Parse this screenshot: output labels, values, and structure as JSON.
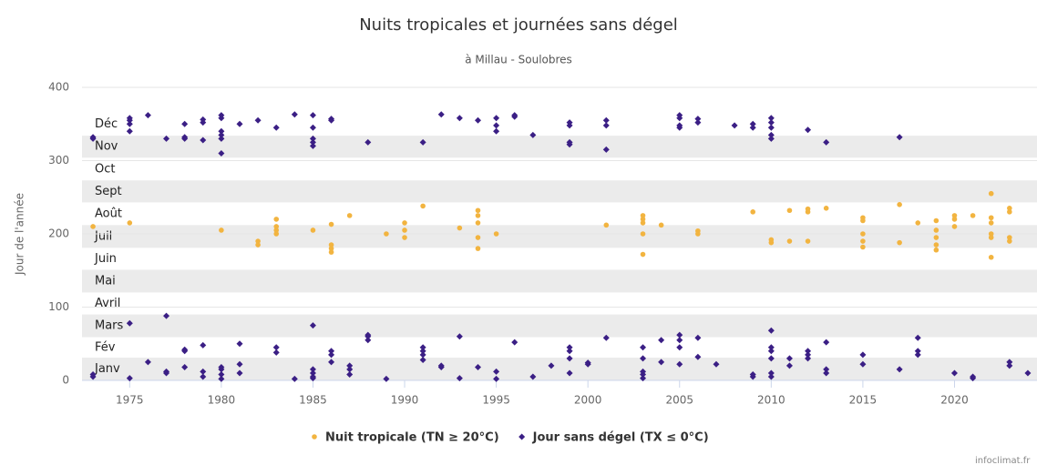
{
  "chart_data": {
    "type": "scatter",
    "title": "Nuits tropicales et journées sans dégel",
    "subtitle": "à Millau - Soulobres",
    "y_label": "Jour de l'année",
    "credit": "infoclimat.fr",
    "xlim": [
      1972.4,
      2024.5
    ],
    "xticks": [
      1975,
      1980,
      1985,
      1990,
      1995,
      2000,
      2005,
      2010,
      2015,
      2020
    ],
    "ylim": [
      0,
      400
    ],
    "yticks": [
      0,
      100,
      200,
      300,
      400
    ],
    "grid": true,
    "legend": "bottom",
    "month_bands": [
      {
        "label": "Janv",
        "from": 0,
        "to": 31
      },
      {
        "label": "Fév",
        "from": 31,
        "to": 59
      },
      {
        "label": "Mars",
        "from": 59,
        "to": 90
      },
      {
        "label": "Avril",
        "from": 90,
        "to": 120
      },
      {
        "label": "Mai",
        "from": 120,
        "to": 151
      },
      {
        "label": "Juin",
        "from": 151,
        "to": 181
      },
      {
        "label": "Juil",
        "from": 181,
        "to": 212
      },
      {
        "label": "Août",
        "from": 212,
        "to": 243
      },
      {
        "label": "Sept",
        "from": 243,
        "to": 273
      },
      {
        "label": "Oct",
        "from": 273,
        "to": 304
      },
      {
        "label": "Nov",
        "from": 304,
        "to": 334
      },
      {
        "label": "Déc",
        "from": 334,
        "to": 365
      }
    ],
    "series": [
      {
        "name": "Nuit tropicale (TN ≥ 20°C)",
        "color": "#f2b440",
        "marker": "circle",
        "x": [
          1973,
          1975,
          1980,
          1982,
          1982,
          1983,
          1983,
          1983,
          1983,
          1985,
          1986,
          1986,
          1986,
          1986,
          1987,
          1989,
          1990,
          1990,
          1990,
          1991,
          1993,
          1994,
          1994,
          1994,
          1994,
          1994,
          1995,
          2001,
          2003,
          2003,
          2003,
          2003,
          2003,
          2004,
          2006,
          2006,
          2009,
          2010,
          2010,
          2011,
          2011,
          2012,
          2012,
          2012,
          2013,
          2015,
          2015,
          2015,
          2015,
          2015,
          2017,
          2017,
          2018,
          2019,
          2019,
          2019,
          2019,
          2019,
          2020,
          2020,
          2020,
          2021,
          2022,
          2022,
          2022,
          2022,
          2022,
          2022,
          2023,
          2023,
          2023,
          2023
        ],
        "values": [
          210,
          215,
          205,
          185,
          190,
          200,
          205,
          210,
          220,
          205,
          175,
          180,
          185,
          213,
          225,
          200,
          195,
          205,
          215,
          238,
          208,
          180,
          195,
          215,
          225,
          232,
          200,
          212,
          172,
          200,
          215,
          220,
          225,
          212,
          200,
          204,
          230,
          188,
          192,
          190,
          232,
          190,
          230,
          234,
          235,
          182,
          190,
          200,
          218,
          222,
          188,
          240,
          215,
          178,
          185,
          195,
          205,
          218,
          210,
          220,
          225,
          225,
          168,
          195,
          200,
          215,
          222,
          255,
          190,
          195,
          230,
          235
        ]
      },
      {
        "name": "Jour sans dégel (TX ≤ 0°C)",
        "color": "#3b1f85",
        "marker": "diamond",
        "x": [
          1973,
          1973,
          1973,
          1973,
          1975,
          1975,
          1975,
          1975,
          1975,
          1975,
          1976,
          1976,
          1977,
          1977,
          1977,
          1977,
          1978,
          1978,
          1978,
          1978,
          1978,
          1978,
          1979,
          1979,
          1979,
          1979,
          1979,
          1979,
          1980,
          1980,
          1980,
          1980,
          1980,
          1980,
          1980,
          1980,
          1980,
          1980,
          1981,
          1981,
          1981,
          1981,
          1982,
          1983,
          1983,
          1983,
          1984,
          1984,
          1985,
          1985,
          1985,
          1985,
          1985,
          1985,
          1985,
          1985,
          1985,
          1985,
          1986,
          1986,
          1986,
          1986,
          1986,
          1987,
          1987,
          1987,
          1988,
          1988,
          1988,
          1988,
          1989,
          1991,
          1991,
          1991,
          1991,
          1991,
          1992,
          1992,
          1992,
          1993,
          1993,
          1993,
          1994,
          1994,
          1995,
          1995,
          1995,
          1995,
          1995,
          1996,
          1996,
          1996,
          1997,
          1997,
          1998,
          1999,
          1999,
          1999,
          1999,
          1999,
          1999,
          1999,
          1999,
          2000,
          2000,
          2001,
          2001,
          2001,
          2001,
          2003,
          2003,
          2003,
          2003,
          2003,
          2004,
          2004,
          2005,
          2005,
          2005,
          2005,
          2005,
          2005,
          2005,
          2005,
          2006,
          2006,
          2006,
          2006,
          2007,
          2008,
          2009,
          2009,
          2009,
          2009,
          2010,
          2010,
          2010,
          2010,
          2010,
          2010,
          2010,
          2010,
          2010,
          2010,
          2010,
          2011,
          2011,
          2012,
          2012,
          2012,
          2012,
          2013,
          2013,
          2013,
          2013,
          2015,
          2015,
          2017,
          2017,
          2018,
          2018,
          2018,
          2020,
          2021,
          2021,
          2023,
          2023,
          2024
        ],
        "values": [
          5,
          8,
          332,
          330,
          3,
          78,
          340,
          350,
          355,
          358,
          25,
          362,
          10,
          12,
          88,
          330,
          18,
          40,
          42,
          330,
          332,
          350,
          5,
          12,
          48,
          328,
          352,
          356,
          2,
          8,
          15,
          18,
          310,
          330,
          335,
          340,
          358,
          362,
          10,
          22,
          50,
          350,
          355,
          38,
          45,
          345,
          2,
          363,
          3,
          5,
          10,
          15,
          75,
          320,
          325,
          330,
          345,
          362,
          25,
          35,
          40,
          355,
          357,
          8,
          15,
          20,
          55,
          60,
          62,
          325,
          2,
          28,
          35,
          40,
          45,
          325,
          18,
          20,
          363,
          3,
          60,
          358,
          18,
          355,
          2,
          12,
          340,
          348,
          358,
          52,
          360,
          362,
          5,
          335,
          20,
          10,
          30,
          40,
          45,
          322,
          325,
          348,
          352,
          22,
          24,
          58,
          315,
          348,
          355,
          3,
          8,
          12,
          30,
          45,
          25,
          55,
          22,
          45,
          55,
          62,
          345,
          348,
          358,
          362,
          32,
          58,
          352,
          357,
          22,
          348,
          5,
          8,
          345,
          350,
          5,
          10,
          30,
          40,
          45,
          68,
          330,
          335,
          345,
          352,
          358,
          20,
          30,
          30,
          35,
          40,
          342,
          10,
          15,
          52,
          325,
          22,
          35,
          15,
          332,
          35,
          40,
          58,
          10,
          3,
          5,
          20,
          25,
          10
        ]
      }
    ]
  }
}
